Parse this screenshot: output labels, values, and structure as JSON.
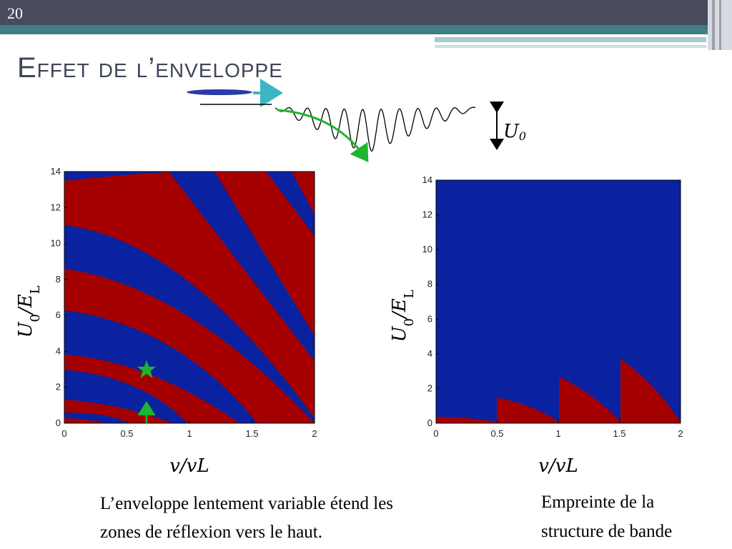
{
  "slide_number": "20",
  "title": "Effet de l’enveloppe",
  "u0_label": [
    "U",
    "0"
  ],
  "charts": [
    {
      "type": "region-map",
      "xlabel": [
        "v",
        "/v",
        "L"
      ],
      "ylabel": [
        "U",
        "0",
        "/E",
        "L"
      ],
      "xlim": [
        0,
        2
      ],
      "ylim": [
        0,
        14
      ],
      "xticks": [
        0,
        0.5,
        1,
        1.5,
        2
      ],
      "yticks": [
        0,
        2,
        4,
        6,
        8,
        10,
        12,
        14
      ]
    },
    {
      "type": "region-map",
      "xlabel": [
        "v",
        "/v",
        "L"
      ],
      "ylabel": [
        "U",
        "0",
        "/E",
        "L"
      ],
      "xlim": [
        0,
        2
      ],
      "ylim": [
        0,
        14
      ],
      "xticks": [
        0,
        0.5,
        1,
        1.5,
        2
      ],
      "yticks": [
        0,
        2,
        4,
        6,
        8,
        10,
        12,
        14
      ]
    }
  ],
  "captions": [
    [
      "L’enveloppe lentement variable étend les",
      "zones de réflexion vers le haut."
    ],
    [
      "Empreinte de la",
      "structure de bande"
    ]
  ]
}
